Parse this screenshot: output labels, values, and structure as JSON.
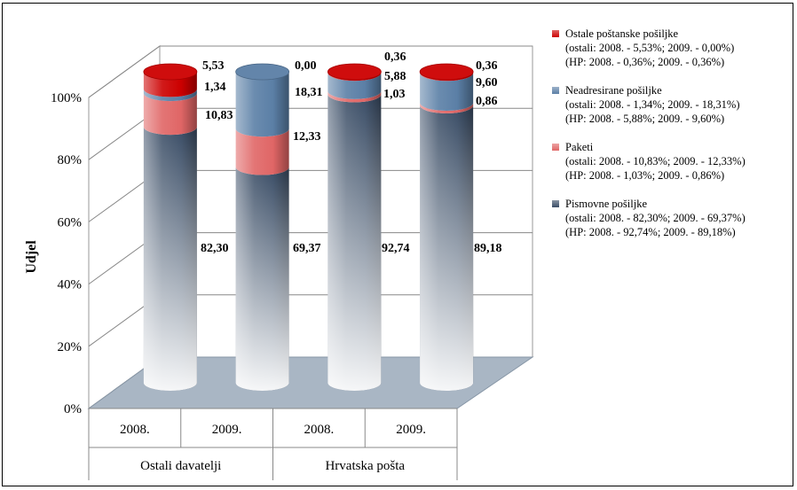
{
  "chart_data": {
    "type": "bar",
    "stacked": true,
    "percent": true,
    "ylabel": "Udjel",
    "ylim": [
      0,
      100
    ],
    "yticks": [
      "0%",
      "20%",
      "40%",
      "60%",
      "80%",
      "100%"
    ],
    "categories": [
      {
        "year": "2008.",
        "group": "Ostali davatelji"
      },
      {
        "year": "2009.",
        "group": "Ostali davatelji"
      },
      {
        "year": "2008.",
        "group": "Hrvatska pošta"
      },
      {
        "year": "2009.",
        "group": "Hrvatska pošta"
      }
    ],
    "groups": [
      "Ostali davatelji",
      "Hrvatska pošta"
    ],
    "series": [
      {
        "name": "Pismovne pošiljke",
        "values": [
          82.3,
          69.37,
          92.74,
          89.18
        ],
        "labels": [
          "82,30",
          "69,37",
          "92,74",
          "89,18"
        ],
        "color": "#3a4d66",
        "legend_lines": [
          "Pismovne pošiljke",
          "(ostali: 2008. - 82,30%; 2009. - 69,37%)",
          "(HP: 2008. - 92,74%; 2009. - 89,18%)"
        ]
      },
      {
        "name": "Paketi",
        "values": [
          10.83,
          12.33,
          1.03,
          0.86
        ],
        "labels": [
          "10,83",
          "12,33",
          "1,03",
          "0,86"
        ],
        "color": "#e06666",
        "legend_lines": [
          "Paketi",
          "(ostali: 2008. - 10,83%; 2009. - 12,33%)",
          "(HP: 2008. - 1,03%; 2009. - 0,86%)"
        ]
      },
      {
        "name": "Neadresirane pošiljke",
        "values": [
          1.34,
          18.31,
          5.88,
          9.6
        ],
        "labels": [
          "1,34",
          "18,31",
          "5,88",
          "9,60"
        ],
        "color": "#5b7fa6",
        "legend_lines": [
          "Neadresirane pošiljke",
          "(ostali: 2008. - 1,34%; 2009. - 18,31%)",
          "(HP: 2008. - 5,88%; 2009. - 9,60%)"
        ]
      },
      {
        "name": "Ostale poštanske pošiljke",
        "values": [
          5.53,
          0.0,
          0.36,
          0.36
        ],
        "labels": [
          "5,53",
          "0,00",
          "0,36",
          "0,36"
        ],
        "color": "#cc0000",
        "legend_lines": [
          "Ostale poštanske pošiljke",
          "(ostali: 2008. - 5,53%; 2009. - 0,00%)",
          "(HP: 2008. - 0,36%; 2009. - 0,36%)"
        ]
      }
    ],
    "legend_order": [
      3,
      2,
      1,
      0
    ],
    "legend_position": "right",
    "grid": true
  }
}
